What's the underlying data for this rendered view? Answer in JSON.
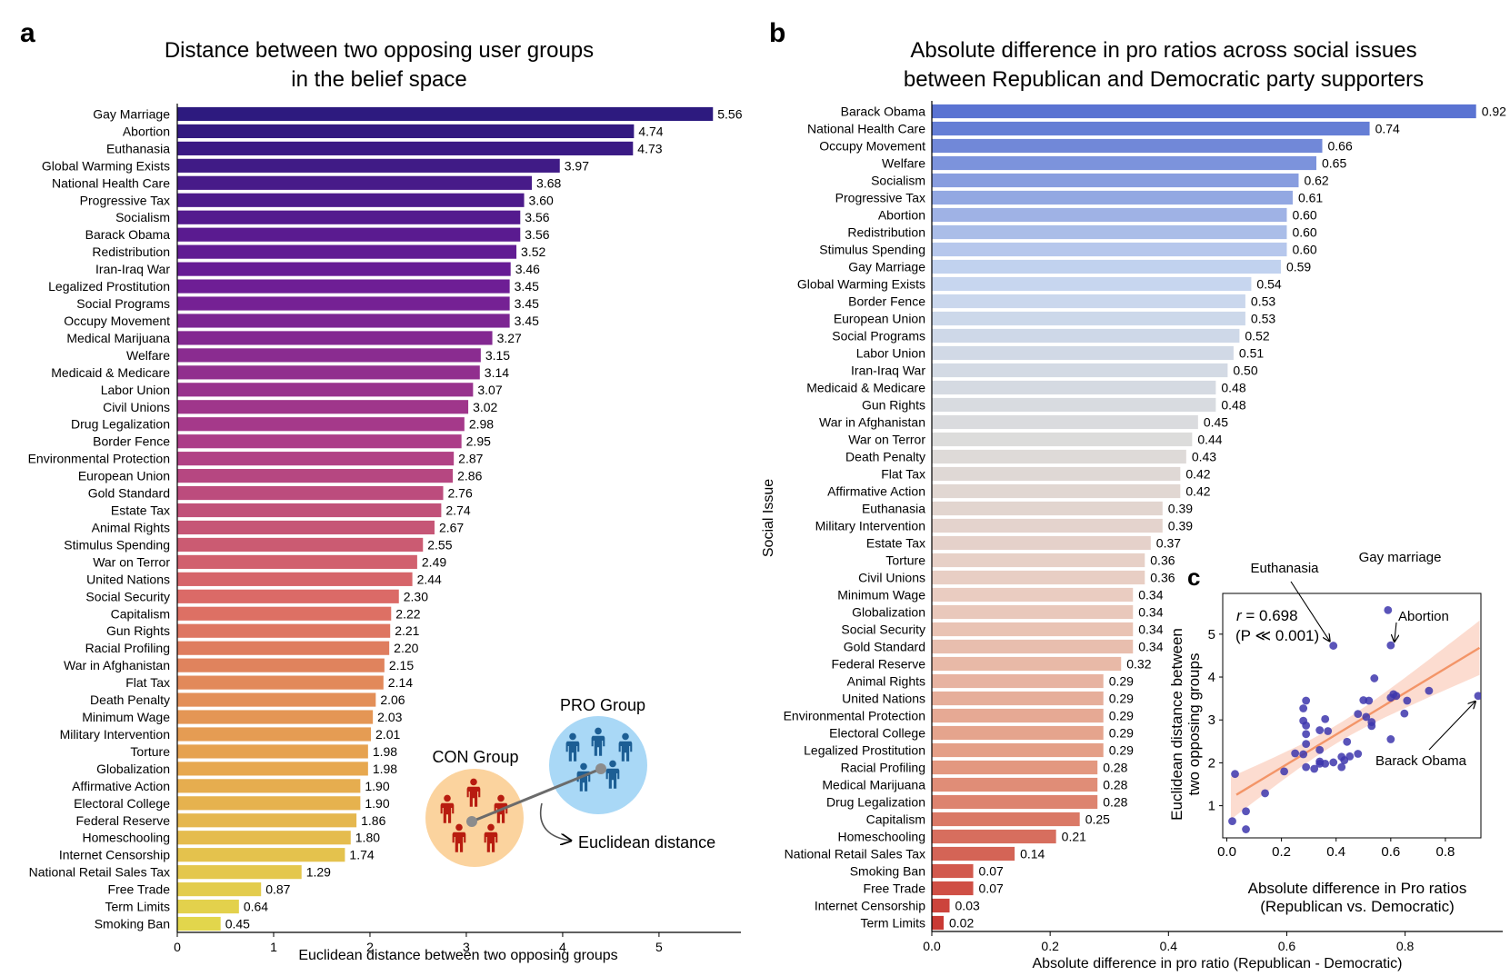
{
  "panel_labels": {
    "a": "a",
    "b": "b",
    "c": "c"
  },
  "colors": {
    "panel_a_top": "#2e1a80",
    "panel_a_bottom": "#e3d34a",
    "panel_b_blue": "#5a73d2",
    "panel_b_gray": "#d9d9dc",
    "panel_b_red": "#c93a34",
    "scatter_point": "#3d36ad",
    "regression": "#f39568",
    "confidence_band": "#fbd6c8",
    "con_group_circle": "#fbd39e",
    "con_group_people": "#b81c10",
    "pro_group_circle": "#a9d8f6",
    "pro_group_people": "#1c5e94",
    "connector_line": "#6b6b6b"
  },
  "inset": {
    "con_label": "CON Group",
    "pro_label": "PRO Group",
    "distance_label": "Euclidean distance"
  },
  "chart_data": [
    {
      "id": "a",
      "type": "bar",
      "orientation": "horizontal",
      "title": "Distance between two opposing user groups\nin the belief space",
      "xlabel": "Euclidean distance between two opposing groups",
      "ylabel": "",
      "xlim": [
        0,
        5.85
      ],
      "xticks": [
        0,
        1,
        2,
        3,
        4,
        5
      ],
      "categories": [
        "Gay Marriage",
        "Abortion",
        "Euthanasia",
        "Global Warming Exists",
        "National Health Care",
        "Progressive Tax",
        "Socialism",
        "Barack Obama",
        "Redistribution",
        "Iran-Iraq War",
        "Legalized Prostitution",
        "Social Programs",
        "Occupy Movement",
        "Medical Marijuana",
        "Welfare",
        "Medicaid & Medicare",
        "Labor Union",
        "Civil Unions",
        "Drug Legalization",
        "Border Fence",
        "Environmental Protection",
        "European Union",
        "Gold Standard",
        "Estate Tax",
        "Animal Rights",
        "Stimulus Spending",
        "War on Terror",
        "United Nations",
        "Social Security",
        "Capitalism",
        "Gun Rights",
        "Racial Profiling",
        "War in Afghanistan",
        "Flat Tax",
        "Death Penalty",
        "Minimum Wage",
        "Military Intervention",
        "Torture",
        "Globalization",
        "Affirmative Action",
        "Electoral College",
        "Federal Reserve",
        "Homeschooling",
        "Internet Censorship",
        "National Retail Sales Tax",
        "Free Trade",
        "Term Limits",
        "Smoking Ban"
      ],
      "values": [
        5.56,
        4.74,
        4.73,
        3.97,
        3.68,
        3.6,
        3.56,
        3.56,
        3.52,
        3.46,
        3.45,
        3.45,
        3.45,
        3.27,
        3.15,
        3.14,
        3.07,
        3.02,
        2.98,
        2.95,
        2.87,
        2.86,
        2.76,
        2.74,
        2.67,
        2.55,
        2.49,
        2.44,
        2.3,
        2.22,
        2.21,
        2.2,
        2.15,
        2.14,
        2.06,
        2.03,
        2.01,
        1.98,
        1.98,
        1.9,
        1.9,
        1.86,
        1.8,
        1.74,
        1.29,
        0.87,
        0.64,
        0.45
      ],
      "value_labels": [
        "5.56",
        "4.74",
        "4.73",
        "3.97",
        "3.68",
        "3.60",
        "3.56",
        "3.56",
        "3.52",
        "3.46",
        "3.45",
        "3.45",
        "3.45",
        "3.27",
        "3.15",
        "3.14",
        "3.07",
        "3.02",
        "2.98",
        "2.95",
        "2.87",
        "2.86",
        "2.76",
        "2.74",
        "2.67",
        "2.55",
        "2.49",
        "2.44",
        "2.30",
        "2.22",
        "2.21",
        "2.20",
        "2.15",
        "2.14",
        "2.06",
        "2.03",
        "2.01",
        "1.98",
        "1.98",
        "1.90",
        "1.90",
        "1.86",
        "1.80",
        "1.74",
        "1.29",
        "0.87",
        "0.64",
        "0.45"
      ],
      "grid": false,
      "legend": "none"
    },
    {
      "id": "b",
      "type": "bar",
      "orientation": "horizontal",
      "title": "Absolute difference in pro ratios across social issues\nbetween Republican and Democratic party supporters",
      "xlabel": "Absolute difference in pro ratio (Republican - Democratic)",
      "ylabel": "Social Issue",
      "xlim": [
        0,
        0.965
      ],
      "xticks": [
        0.0,
        0.2,
        0.4,
        0.6,
        0.8
      ],
      "xtick_labels": [
        "0.0",
        "0.2",
        "0.4",
        "0.6",
        "0.8"
      ],
      "categories": [
        "Barack Obama",
        "National Health Care",
        "Occupy Movement",
        "Welfare",
        "Socialism",
        "Progressive Tax",
        "Abortion",
        "Redistribution",
        "Stimulus Spending",
        "Gay Marriage",
        "Global Warming Exists",
        "Border Fence",
        "European Union",
        "Social Programs",
        "Labor Union",
        "Iran-Iraq War",
        "Medicaid & Medicare",
        "Gun Rights",
        "War in Afghanistan",
        "War on Terror",
        "Death Penalty",
        "Flat Tax",
        "Affirmative Action",
        "Euthanasia",
        "Military Intervention",
        "Estate Tax",
        "Torture",
        "Civil Unions",
        "Minimum Wage",
        "Globalization",
        "Social Security",
        "Gold Standard",
        "Federal Reserve",
        "Animal Rights",
        "United Nations",
        "Environmental Protection",
        "Electoral College",
        "Legalized Prostitution",
        "Racial Profiling",
        "Medical Marijuana",
        "Drug Legalization",
        "Capitalism",
        "Homeschooling",
        "National Retail Sales Tax",
        "Smoking Ban",
        "Free Trade",
        "Internet Censorship",
        "Term Limits"
      ],
      "values": [
        0.92,
        0.74,
        0.66,
        0.65,
        0.62,
        0.61,
        0.6,
        0.6,
        0.6,
        0.59,
        0.54,
        0.53,
        0.53,
        0.52,
        0.51,
        0.5,
        0.48,
        0.48,
        0.45,
        0.44,
        0.43,
        0.42,
        0.42,
        0.39,
        0.39,
        0.37,
        0.36,
        0.36,
        0.34,
        0.34,
        0.34,
        0.34,
        0.32,
        0.29,
        0.29,
        0.29,
        0.29,
        0.29,
        0.28,
        0.28,
        0.28,
        0.25,
        0.21,
        0.14,
        0.07,
        0.07,
        0.03,
        0.02
      ],
      "value_labels": [
        "0.92",
        "0.74",
        "0.66",
        "0.65",
        "0.62",
        "0.61",
        "0.60",
        "0.60",
        "0.60",
        "0.59",
        "0.54",
        "0.53",
        "0.53",
        "0.52",
        "0.51",
        "0.50",
        "0.48",
        "0.48",
        "0.45",
        "0.44",
        "0.43",
        "0.42",
        "0.42",
        "0.39",
        "0.39",
        "0.37",
        "0.36",
        "0.36",
        "0.34",
        "0.34",
        "0.34",
        "0.34",
        "0.32",
        "0.29",
        "0.29",
        "0.29",
        "0.29",
        "0.29",
        "0.28",
        "0.28",
        "0.28",
        "0.25",
        "0.21",
        "0.14",
        "0.07",
        "0.07",
        "0.03",
        "0.02"
      ],
      "grid": false,
      "legend": "none"
    },
    {
      "id": "c",
      "type": "scatter",
      "title": "",
      "xlabel": "Absolute difference in Pro ratios\n(Republican vs. Democratic)",
      "ylabel": "Euclidean distance between\ntwo opposing groups",
      "xlim": [
        -0.015,
        0.93
      ],
      "ylim": [
        0.25,
        5.95
      ],
      "xticks": [
        0.0,
        0.2,
        0.4,
        0.6,
        0.8
      ],
      "xtick_labels": [
        "0.0",
        "0.2",
        "0.4",
        "0.6",
        "0.8"
      ],
      "yticks": [
        1,
        2,
        3,
        4,
        5
      ],
      "annotation_r": "r = 0.698",
      "annotation_p": "(P ≪ 0.001)",
      "regression": {
        "slope": 3.85,
        "intercept": 1.12
      },
      "point_labels": [
        {
          "text": "Euthanasia",
          "x": 0.39,
          "y": 4.73,
          "position": "upper-left"
        },
        {
          "text": "Gay marriage",
          "x": 0.59,
          "y": 5.56,
          "position": "above"
        },
        {
          "text": "Abortion",
          "x": 0.6,
          "y": 4.74,
          "position": "upper-right"
        },
        {
          "text": "Barack Obama",
          "x": 0.92,
          "y": 3.56,
          "position": "lower-left"
        }
      ],
      "x": [
        0.59,
        0.6,
        0.39,
        0.54,
        0.74,
        0.61,
        0.62,
        0.92,
        0.6,
        0.5,
        0.29,
        0.52,
        0.66,
        0.28,
        0.65,
        0.48,
        0.51,
        0.36,
        0.28,
        0.53,
        0.29,
        0.53,
        0.34,
        0.37,
        0.29,
        0.6,
        0.44,
        0.29,
        0.34,
        0.25,
        0.48,
        0.28,
        0.45,
        0.42,
        0.43,
        0.34,
        0.39,
        0.36,
        0.34,
        0.42,
        0.29,
        0.32,
        0.21,
        0.03,
        0.14,
        0.07,
        0.02,
        0.07
      ],
      "y": [
        5.56,
        4.74,
        4.73,
        3.97,
        3.68,
        3.6,
        3.56,
        3.56,
        3.52,
        3.46,
        3.45,
        3.45,
        3.45,
        3.27,
        3.15,
        3.14,
        3.07,
        3.02,
        2.98,
        2.95,
        2.87,
        2.86,
        2.76,
        2.74,
        2.67,
        2.55,
        2.49,
        2.44,
        2.3,
        2.22,
        2.21,
        2.2,
        2.15,
        2.14,
        2.06,
        2.03,
        2.01,
        1.98,
        1.98,
        1.9,
        1.9,
        1.86,
        1.8,
        1.74,
        1.29,
        0.87,
        0.64,
        0.45
      ],
      "grid": false,
      "legend": "none"
    }
  ]
}
